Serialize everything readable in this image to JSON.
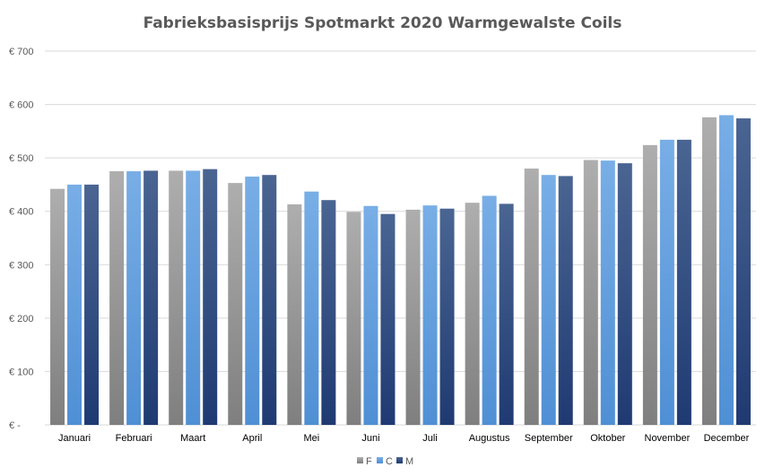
{
  "chart_data": {
    "type": "bar",
    "title": "Fabrieksbasisprijs Spotmarkt 2020  Warmgewalste Coils",
    "xlabel": "",
    "ylabel": "",
    "ylim": [
      0,
      700
    ],
    "y_ticks": [
      {
        "value": 0,
        "label": "€ -"
      },
      {
        "value": 100,
        "label": "€ 100"
      },
      {
        "value": 200,
        "label": "€ 200"
      },
      {
        "value": 300,
        "label": "€ 300"
      },
      {
        "value": 400,
        "label": "€ 400"
      },
      {
        "value": 500,
        "label": "€ 500"
      },
      {
        "value": 600,
        "label": "€ 600"
      },
      {
        "value": 700,
        "label": "€ 700"
      }
    ],
    "grid": true,
    "legend": "bottom",
    "categories": [
      "Januari",
      "Februari",
      "Maart",
      "April",
      "Mei",
      "Juni",
      "Juli",
      "Augustus",
      "September",
      "Oktober",
      "November",
      "December"
    ],
    "series": [
      {
        "name": "F",
        "color_top": "#aeaeae",
        "color_bottom": "#7f7f7f",
        "values": [
          442,
          475,
          476,
          453,
          413,
          399,
          403,
          416,
          480,
          496,
          524,
          576
        ]
      },
      {
        "name": "C",
        "color_top": "#79aee6",
        "color_bottom": "#4f8fd4",
        "values": [
          450,
          475,
          476,
          465,
          437,
          410,
          411,
          429,
          468,
          495,
          534,
          580
        ]
      },
      {
        "name": "M",
        "color_top": "#4a6592",
        "color_bottom": "#1f3a72",
        "values": [
          450,
          476,
          479,
          468,
          421,
          395,
          405,
          414,
          466,
          490,
          534,
          574
        ]
      }
    ]
  }
}
